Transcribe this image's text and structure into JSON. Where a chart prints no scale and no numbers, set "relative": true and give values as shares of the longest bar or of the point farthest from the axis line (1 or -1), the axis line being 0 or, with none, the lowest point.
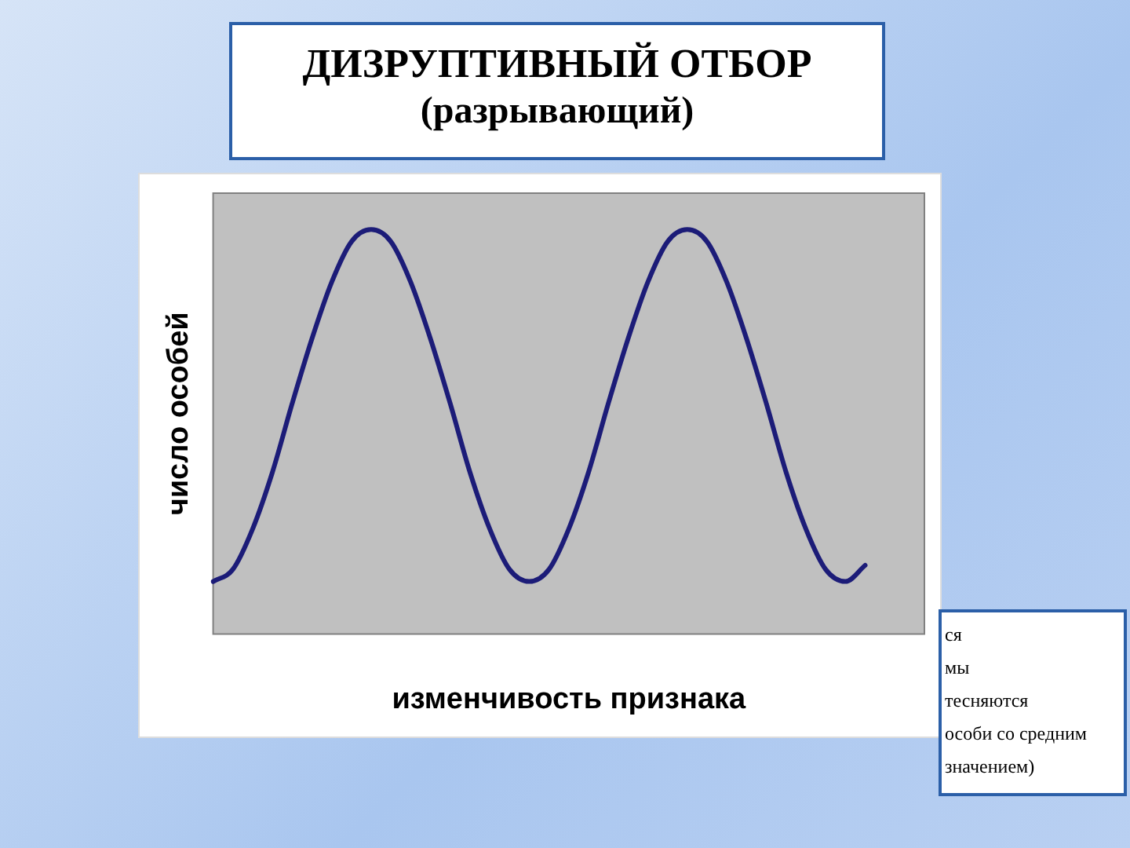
{
  "chart_data": {
    "type": "line",
    "title": "ДИЗРУПТИВНЫЙ ОТБОР",
    "subtitle": "(разрывающий)",
    "xlabel": "изменчивость признака",
    "ylabel": "число особей",
    "relative": true,
    "legend": false,
    "marker": "none",
    "line_style": "solid",
    "categories": [
      null,
      null,
      null,
      null,
      null,
      null,
      null,
      null,
      null,
      null,
      null,
      null,
      null,
      null,
      null,
      null,
      null,
      null,
      null,
      null,
      null,
      null,
      null,
      null,
      null,
      null,
      null,
      null,
      null,
      null,
      null,
      null,
      null,
      null,
      null,
      null,
      null
    ],
    "series": [
      {
        "color": "#1c1c78",
        "values": [
          0.13,
          0.16,
          0.26,
          0.4,
          0.57,
          0.73,
          0.87,
          0.97,
          1,
          0.97,
          0.87,
          0.73,
          0.57,
          0.4,
          0.26,
          0.16,
          0.13,
          0.16,
          0.26,
          0.4,
          0.57,
          0.73,
          0.87,
          0.97,
          1,
          0.97,
          0.87,
          0.73,
          0.57,
          0.4,
          0.26,
          0.16,
          0.13,
          0.17,
          null,
          null,
          null
        ]
      }
    ],
    "annotations": [
      "ся\nмы\nтесняются\nособи со средним\nзначением)"
    ]
  }
}
